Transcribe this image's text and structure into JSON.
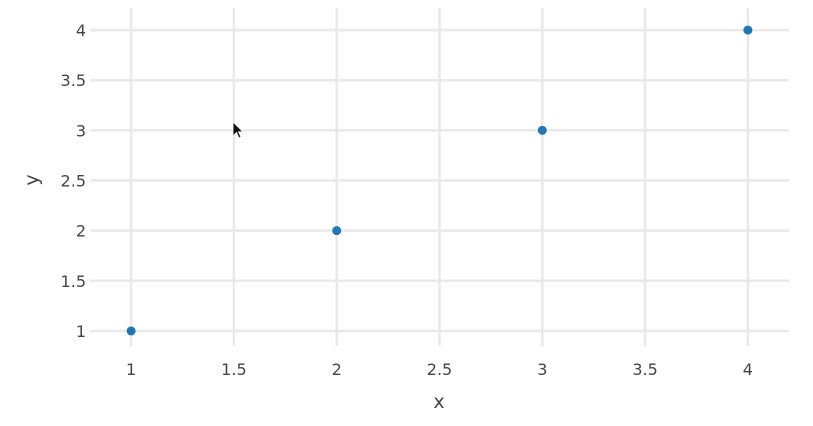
{
  "chart_data": {
    "type": "scatter",
    "title": "",
    "xlabel": "x",
    "ylabel": "y",
    "x": [
      1,
      2,
      3,
      4
    ],
    "y": [
      1,
      2,
      3,
      4
    ],
    "xlim": [
      0.8,
      4.2
    ],
    "ylim": [
      0.85,
      4.22
    ],
    "xticks": [
      1,
      1.5,
      2,
      2.5,
      3,
      3.5,
      4
    ],
    "xtick_labels": [
      "1",
      "1.5",
      "2",
      "2.5",
      "3",
      "3.5",
      "4"
    ],
    "yticks": [
      1,
      1.5,
      2,
      2.5,
      3,
      3.5,
      4
    ],
    "ytick_labels": [
      "1",
      "1.5",
      "2",
      "2.5",
      "3",
      "3.5",
      "4"
    ],
    "grid": true,
    "marker_color": "#1f77b4"
  }
}
